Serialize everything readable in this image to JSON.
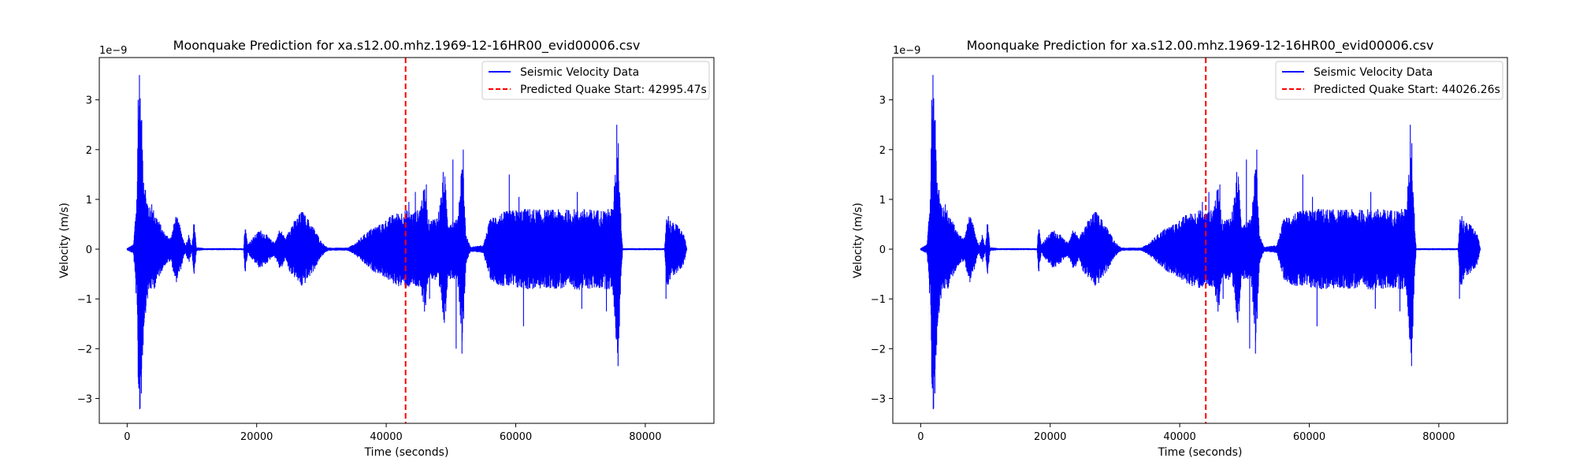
{
  "chart_data": [
    {
      "type": "line",
      "title": "Moonquake Prediction for xa.s12.00.mhz.1969-12-16HR00_evid00006.csv",
      "xlabel": "Time (seconds)",
      "ylabel": "Velocity (m/s)",
      "y_scale_label": "1e−9",
      "xlim": [
        -4300,
        90600
      ],
      "ylim": [
        -3.5,
        3.85
      ],
      "x_ticks": [
        0,
        20000,
        40000,
        60000,
        80000
      ],
      "x_tick_labels": [
        "0",
        "20000",
        "40000",
        "60000",
        "80000"
      ],
      "y_ticks": [
        -3,
        -2,
        -1,
        0,
        1,
        2,
        3
      ],
      "y_tick_labels": [
        "−3",
        "−2",
        "−1",
        "0",
        "1",
        "2",
        "3"
      ],
      "grid": false,
      "legend_position": "top-right",
      "series": [
        {
          "name": "Seismic Velocity Data",
          "color": "#0000ff",
          "envelope": [
            [
              0,
              0.02
            ],
            [
              1000,
              0.1
            ],
            [
              1500,
              1.2
            ],
            [
              1800,
              3.5
            ],
            [
              2000,
              3.2
            ],
            [
              2300,
              2.5
            ],
            [
              2600,
              1.6
            ],
            [
              3000,
              1.1
            ],
            [
              3500,
              0.85
            ],
            [
              4200,
              0.8
            ],
            [
              5000,
              0.55
            ],
            [
              5500,
              0.4
            ],
            [
              6000,
              0.3
            ],
            [
              6800,
              0.25
            ],
            [
              7500,
              0.7
            ],
            [
              8000,
              0.55
            ],
            [
              8500,
              0.3
            ],
            [
              9000,
              0.08
            ],
            [
              9500,
              0.3
            ],
            [
              10000,
              0.04
            ],
            [
              10300,
              0.6
            ],
            [
              10700,
              0.04
            ],
            [
              12000,
              0.02
            ],
            [
              18000,
              0.02
            ],
            [
              18200,
              0.55
            ],
            [
              18600,
              0.1
            ],
            [
              19500,
              0.25
            ],
            [
              20500,
              0.4
            ],
            [
              21500,
              0.3
            ],
            [
              22500,
              0.15
            ],
            [
              23000,
              0.2
            ],
            [
              23500,
              0.4
            ],
            [
              24000,
              0.35
            ],
            [
              24500,
              0.2
            ],
            [
              25000,
              0.45
            ],
            [
              26000,
              0.6
            ],
            [
              27000,
              0.78
            ],
            [
              28000,
              0.6
            ],
            [
              29000,
              0.4
            ],
            [
              30000,
              0.15
            ],
            [
              31000,
              0.03
            ],
            [
              34000,
              0.03
            ],
            [
              35000,
              0.1
            ],
            [
              36000,
              0.22
            ],
            [
              37000,
              0.35
            ],
            [
              38000,
              0.45
            ],
            [
              39000,
              0.5
            ],
            [
              40000,
              0.6
            ],
            [
              41000,
              0.7
            ],
            [
              42000,
              0.75
            ],
            [
              43000,
              0.8
            ],
            [
              44000,
              0.75
            ],
            [
              45000,
              0.8
            ],
            [
              46000,
              1.3
            ],
            [
              46500,
              0.6
            ],
            [
              47000,
              0.6
            ],
            [
              48000,
              0.7
            ],
            [
              49000,
              1.6
            ],
            [
              49500,
              0.6
            ],
            [
              50000,
              0.6
            ],
            [
              51000,
              0.6
            ],
            [
              51800,
              2.0
            ],
            [
              52300,
              0.3
            ],
            [
              53000,
              0.05
            ],
            [
              55000,
              0.08
            ],
            [
              56000,
              0.6
            ],
            [
              57000,
              0.7
            ],
            [
              58000,
              0.75
            ],
            [
              60000,
              0.8
            ],
            [
              62000,
              0.82
            ],
            [
              64000,
              0.8
            ],
            [
              66000,
              0.8
            ],
            [
              68000,
              0.8
            ],
            [
              70000,
              0.82
            ],
            [
              72000,
              0.8
            ],
            [
              74000,
              0.8
            ],
            [
              75000,
              0.85
            ],
            [
              75800,
              2.45
            ],
            [
              76200,
              0.8
            ],
            [
              76500,
              0.02
            ],
            [
              83000,
              0.02
            ],
            [
              83300,
              0.8
            ],
            [
              84000,
              0.55
            ],
            [
              85000,
              0.5
            ],
            [
              86000,
              0.3
            ],
            [
              86400,
              0.02
            ]
          ],
          "spikes": [
            [
              1700,
              3.0
            ],
            [
              1900,
              3.5
            ],
            [
              2000,
              -3.2
            ],
            [
              2200,
              -2.9
            ],
            [
              3800,
              0.9
            ],
            [
              43500,
              0.95
            ],
            [
              44500,
              1.15
            ],
            [
              46200,
              1.3
            ],
            [
              46700,
              -1.0
            ],
            [
              48800,
              1.55
            ],
            [
              49200,
              -1.25
            ],
            [
              50300,
              1.8
            ],
            [
              50800,
              -2.0
            ],
            [
              51900,
              2.0
            ],
            [
              51700,
              -2.1
            ],
            [
              59000,
              1.5
            ],
            [
              60500,
              1.05
            ],
            [
              61200,
              -1.55
            ],
            [
              69500,
              1.15
            ],
            [
              70200,
              -1.2
            ],
            [
              74000,
              -1.25
            ],
            [
              75600,
              2.5
            ],
            [
              75800,
              -2.35
            ],
            [
              83200,
              -1.0
            ]
          ]
        },
        {
          "name": "Predicted Quake Start: 42995.47s",
          "type": "vline",
          "x": 42995.47,
          "color": "#ff0000",
          "style": "dashed"
        }
      ]
    },
    {
      "type": "line",
      "title": "Moonquake Prediction for xa.s12.00.mhz.1969-12-16HR00_evid00006.csv",
      "xlabel": "Time (seconds)",
      "ylabel": "Velocity (m/s)",
      "y_scale_label": "1e−9",
      "xlim": [
        -4300,
        90600
      ],
      "ylim": [
        -3.5,
        3.85
      ],
      "x_ticks": [
        0,
        20000,
        40000,
        60000,
        80000
      ],
      "x_tick_labels": [
        "0",
        "20000",
        "40000",
        "60000",
        "80000"
      ],
      "y_ticks": [
        -3,
        -2,
        -1,
        0,
        1,
        2,
        3
      ],
      "y_tick_labels": [
        "−3",
        "−2",
        "−1",
        "0",
        "1",
        "2",
        "3"
      ],
      "grid": false,
      "legend_position": "top-right",
      "series": [
        {
          "name": "Seismic Velocity Data",
          "color": "#0000ff",
          "envelope": [
            [
              0,
              0.02
            ],
            [
              1000,
              0.1
            ],
            [
              1500,
              1.2
            ],
            [
              1800,
              3.5
            ],
            [
              2000,
              3.2
            ],
            [
              2300,
              2.5
            ],
            [
              2600,
              1.6
            ],
            [
              3000,
              1.1
            ],
            [
              3500,
              0.85
            ],
            [
              4200,
              0.8
            ],
            [
              5000,
              0.55
            ],
            [
              5500,
              0.4
            ],
            [
              6000,
              0.3
            ],
            [
              6800,
              0.25
            ],
            [
              7500,
              0.7
            ],
            [
              8000,
              0.55
            ],
            [
              8500,
              0.3
            ],
            [
              9000,
              0.08
            ],
            [
              9500,
              0.3
            ],
            [
              10000,
              0.04
            ],
            [
              10300,
              0.6
            ],
            [
              10700,
              0.04
            ],
            [
              12000,
              0.02
            ],
            [
              18000,
              0.02
            ],
            [
              18200,
              0.55
            ],
            [
              18600,
              0.1
            ],
            [
              19500,
              0.25
            ],
            [
              20500,
              0.4
            ],
            [
              21500,
              0.3
            ],
            [
              22500,
              0.15
            ],
            [
              23000,
              0.2
            ],
            [
              23500,
              0.4
            ],
            [
              24000,
              0.35
            ],
            [
              24500,
              0.2
            ],
            [
              25000,
              0.45
            ],
            [
              26000,
              0.6
            ],
            [
              27000,
              0.78
            ],
            [
              28000,
              0.6
            ],
            [
              29000,
              0.4
            ],
            [
              30000,
              0.15
            ],
            [
              31000,
              0.03
            ],
            [
              34000,
              0.03
            ],
            [
              35000,
              0.1
            ],
            [
              36000,
              0.22
            ],
            [
              37000,
              0.35
            ],
            [
              38000,
              0.45
            ],
            [
              39000,
              0.5
            ],
            [
              40000,
              0.6
            ],
            [
              41000,
              0.7
            ],
            [
              42000,
              0.75
            ],
            [
              43000,
              0.8
            ],
            [
              44000,
              0.75
            ],
            [
              45000,
              0.8
            ],
            [
              46000,
              1.3
            ],
            [
              46500,
              0.6
            ],
            [
              47000,
              0.6
            ],
            [
              48000,
              0.7
            ],
            [
              49000,
              1.6
            ],
            [
              49500,
              0.6
            ],
            [
              50000,
              0.6
            ],
            [
              51000,
              0.6
            ],
            [
              51800,
              2.0
            ],
            [
              52300,
              0.3
            ],
            [
              53000,
              0.05
            ],
            [
              55000,
              0.08
            ],
            [
              56000,
              0.6
            ],
            [
              57000,
              0.7
            ],
            [
              58000,
              0.75
            ],
            [
              60000,
              0.8
            ],
            [
              62000,
              0.82
            ],
            [
              64000,
              0.8
            ],
            [
              66000,
              0.8
            ],
            [
              68000,
              0.8
            ],
            [
              70000,
              0.82
            ],
            [
              72000,
              0.8
            ],
            [
              74000,
              0.8
            ],
            [
              75000,
              0.85
            ],
            [
              75800,
              2.45
            ],
            [
              76200,
              0.8
            ],
            [
              76500,
              0.02
            ],
            [
              83000,
              0.02
            ],
            [
              83300,
              0.8
            ],
            [
              84000,
              0.55
            ],
            [
              85000,
              0.5
            ],
            [
              86000,
              0.3
            ],
            [
              86400,
              0.02
            ]
          ],
          "spikes": [
            [
              1700,
              3.0
            ],
            [
              1900,
              3.5
            ],
            [
              2000,
              -3.2
            ],
            [
              2200,
              -2.9
            ],
            [
              3800,
              0.9
            ],
            [
              43500,
              0.95
            ],
            [
              44500,
              1.15
            ],
            [
              46200,
              1.3
            ],
            [
              46700,
              -1.0
            ],
            [
              48800,
              1.55
            ],
            [
              49200,
              -1.25
            ],
            [
              50300,
              1.8
            ],
            [
              50800,
              -2.0
            ],
            [
              51900,
              2.0
            ],
            [
              51700,
              -2.1
            ],
            [
              59000,
              1.5
            ],
            [
              60500,
              1.05
            ],
            [
              61200,
              -1.55
            ],
            [
              69500,
              1.15
            ],
            [
              70200,
              -1.2
            ],
            [
              74000,
              -1.25
            ],
            [
              75600,
              2.5
            ],
            [
              75800,
              -2.35
            ],
            [
              83200,
              -1.0
            ]
          ]
        },
        {
          "name": "Predicted Quake Start: 44026.26s",
          "type": "vline",
          "x": 44026.26,
          "color": "#ff0000",
          "style": "dashed"
        }
      ]
    }
  ]
}
